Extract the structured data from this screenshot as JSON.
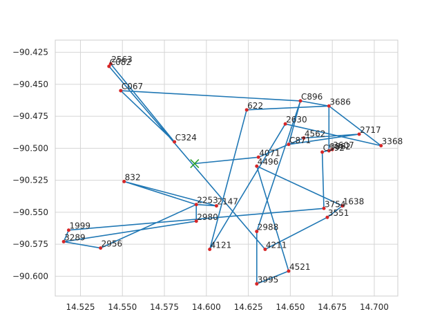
{
  "chart_data": {
    "type": "line",
    "title": "",
    "xlabel": "",
    "ylabel": "",
    "xlim": [
      14.51,
      14.714
    ],
    "ylim": [
      -90.6155,
      -90.4155
    ],
    "xticks": [
      14.525,
      14.55,
      14.575,
      14.6,
      14.625,
      14.65,
      14.675,
      14.7
    ],
    "yticks": [
      -90.6,
      -90.575,
      -90.55,
      -90.525,
      -90.5,
      -90.475,
      -90.45,
      -90.425
    ],
    "xtick_labels": [
      "14.525",
      "14.550",
      "14.575",
      "14.600",
      "14.625",
      "14.650",
      "14.675",
      "14.700"
    ],
    "ytick_labels": [
      "−90.600",
      "−90.575",
      "−90.550",
      "−90.525",
      "−90.500",
      "−90.475",
      "−90.450",
      "−90.425"
    ],
    "grid": true,
    "colors": {
      "route": "#1f77b4",
      "points": "#d62728",
      "depot": "#2ca02c"
    },
    "depot": {
      "x": 14.593,
      "y": -90.512
    },
    "points": [
      {
        "label": "2563",
        "x": 14.543,
        "y": -90.434
      },
      {
        "label": "C082",
        "x": 14.542,
        "y": -90.436
      },
      {
        "label": "C067",
        "x": 14.549,
        "y": -90.455
      },
      {
        "label": "C324",
        "x": 14.581,
        "y": -90.495
      },
      {
        "label": "C896",
        "x": 14.656,
        "y": -90.463
      },
      {
        "label": "3686",
        "x": 14.673,
        "y": -90.467
      },
      {
        "label": "622",
        "x": 14.624,
        "y": -90.47
      },
      {
        "label": "2630",
        "x": 14.647,
        "y": -90.481
      },
      {
        "label": "2717",
        "x": 14.691,
        "y": -90.489
      },
      {
        "label": "3368",
        "x": 14.704,
        "y": -90.498
      },
      {
        "label": "4562",
        "x": 14.658,
        "y": -90.492
      },
      {
        "label": "C871",
        "x": 14.649,
        "y": -90.497
      },
      {
        "label": "3607",
        "x": 14.675,
        "y": -90.501
      },
      {
        "label": "3862",
        "x": 14.673,
        "y": -90.502
      },
      {
        "label": "C592",
        "x": 14.669,
        "y": -90.503
      },
      {
        "label": "4071",
        "x": 14.631,
        "y": -90.507
      },
      {
        "label": "4496",
        "x": 14.63,
        "y": -90.514
      },
      {
        "label": "832",
        "x": 14.551,
        "y": -90.526
      },
      {
        "label": "2253",
        "x": 14.594,
        "y": -90.544
      },
      {
        "label": "2147",
        "x": 14.606,
        "y": -90.545
      },
      {
        "label": "3754",
        "x": 14.67,
        "y": -90.547
      },
      {
        "label": "1638",
        "x": 14.681,
        "y": -90.545
      },
      {
        "label": "3551",
        "x": 14.672,
        "y": -90.554
      },
      {
        "label": "2980",
        "x": 14.594,
        "y": -90.557
      },
      {
        "label": "1999",
        "x": 14.518,
        "y": -90.564
      },
      {
        "label": "2988",
        "x": 14.63,
        "y": -90.565
      },
      {
        "label": "3289",
        "x": 14.515,
        "y": -90.573
      },
      {
        "label": "2956",
        "x": 14.537,
        "y": -90.578
      },
      {
        "label": "4121",
        "x": 14.602,
        "y": -90.579
      },
      {
        "label": "4211",
        "x": 14.635,
        "y": -90.579
      },
      {
        "label": "4521",
        "x": 14.649,
        "y": -90.596
      },
      {
        "label": "3995",
        "x": 14.63,
        "y": -90.606
      }
    ],
    "route": [
      [
        14.593,
        -90.512
      ],
      [
        14.631,
        -90.507
      ],
      [
        14.658,
        -90.492
      ],
      [
        14.691,
        -90.489
      ],
      [
        14.649,
        -90.497
      ],
      [
        14.656,
        -90.463
      ],
      [
        14.63,
        -90.565
      ],
      [
        14.63,
        -90.606
      ],
      [
        14.649,
        -90.596
      ],
      [
        14.63,
        -90.514
      ],
      [
        14.681,
        -90.545
      ],
      [
        14.672,
        -90.554
      ],
      [
        14.635,
        -90.579
      ],
      [
        14.542,
        -90.436
      ],
      [
        14.543,
        -90.434
      ],
      [
        14.581,
        -90.495
      ],
      [
        14.549,
        -90.455
      ],
      [
        14.656,
        -90.463
      ],
      [
        14.673,
        -90.467
      ],
      [
        14.704,
        -90.498
      ],
      [
        14.647,
        -90.481
      ],
      [
        14.602,
        -90.579
      ],
      [
        14.624,
        -90.47
      ],
      [
        14.673,
        -90.467
      ],
      [
        14.673,
        -90.502
      ],
      [
        14.675,
        -90.501
      ],
      [
        14.669,
        -90.503
      ],
      [
        14.67,
        -90.547
      ],
      [
        14.518,
        -90.564
      ],
      [
        14.515,
        -90.573
      ],
      [
        14.594,
        -90.557
      ],
      [
        14.594,
        -90.544
      ],
      [
        14.551,
        -90.526
      ],
      [
        14.606,
        -90.545
      ],
      [
        14.594,
        -90.544
      ],
      [
        14.537,
        -90.578
      ],
      [
        14.515,
        -90.573
      ]
    ]
  }
}
